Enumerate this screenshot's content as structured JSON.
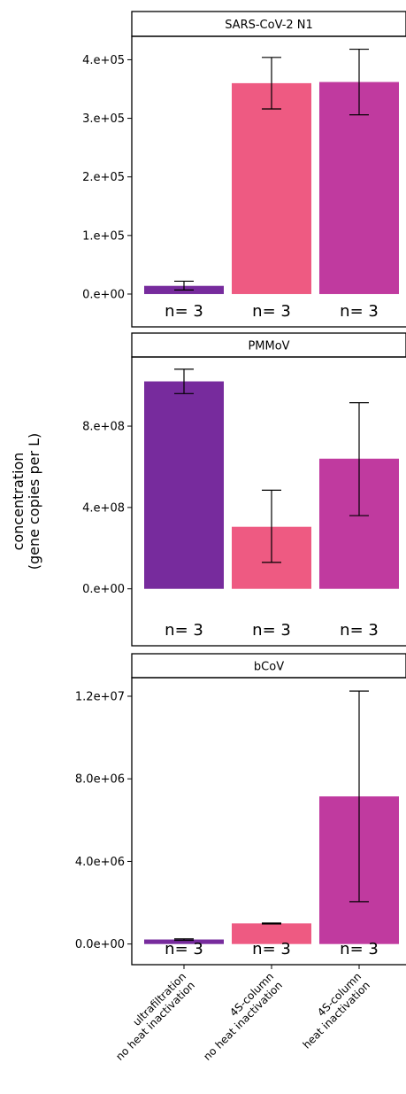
{
  "chart_data": {
    "type": "bar",
    "ylabel": [
      "concentration",
      "(gene copies per L)"
    ],
    "categories": [
      [
        "ultrafiltration",
        "no heat inactivation"
      ],
      [
        "4S-column",
        "no heat inactivation"
      ],
      [
        "4S-column",
        "heat inactivation"
      ]
    ],
    "colors": [
      "#772b9d",
      "#ee5a82",
      "#c03a9f"
    ],
    "legend": "none",
    "grid": false,
    "panels": [
      {
        "strip": "SARS-CoV-2 N1",
        "values": [
          14000,
          360000,
          362000
        ],
        "err_low": [
          7000,
          316000,
          306000
        ],
        "err_high": [
          22000,
          404000,
          418000
        ],
        "n_labels": [
          "n= 3",
          "n= 3",
          "n= 3"
        ],
        "ylim": [
          -56000,
          440000
        ],
        "yticks": [
          0,
          100000,
          200000,
          300000,
          400000
        ],
        "ytick_labels": [
          "0.e+00",
          "1.e+05",
          "2.e+05",
          "3.e+05",
          "4.e+05"
        ]
      },
      {
        "strip": "PMMoV",
        "values": [
          1020000000,
          305000000,
          640000000
        ],
        "err_low": [
          960000000,
          130000000,
          360000000
        ],
        "err_high": [
          1080000000,
          485000000,
          915000000
        ],
        "n_labels": [
          "n= 3",
          "n= 3",
          "n= 3"
        ],
        "ylim": [
          -280000000,
          1140000000
        ],
        "yticks": [
          0,
          400000000,
          800000000
        ],
        "ytick_labels": [
          "0.e+00",
          "4.e+08",
          "8.e+08"
        ]
      },
      {
        "strip": "bCoV",
        "values": [
          220000,
          1000000,
          7150000
        ],
        "err_low": [
          180000,
          970000,
          2050000
        ],
        "err_high": [
          250000,
          1020000,
          12250000
        ],
        "n_labels": [
          "n= 3",
          "n= 3",
          "n= 3"
        ],
        "ylim": [
          -1000000,
          12900000
        ],
        "yticks": [
          0,
          4000000,
          8000000,
          12000000
        ],
        "ytick_labels": [
          "0.0e+00",
          "4.0e+06",
          "8.0e+06",
          "1.2e+07"
        ]
      }
    ]
  }
}
